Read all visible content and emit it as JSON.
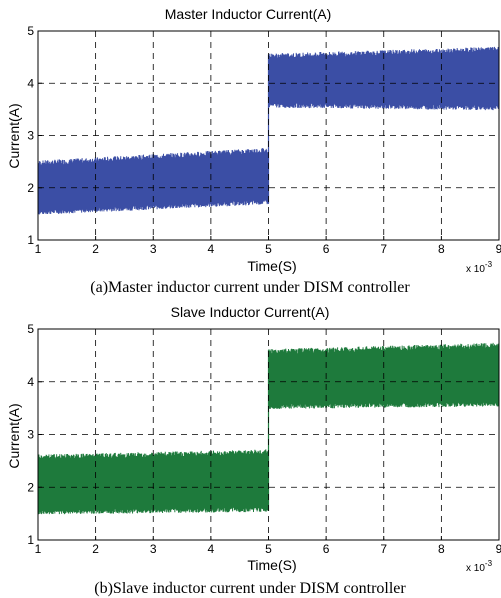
{
  "chart_data": [
    {
      "type": "line",
      "title": "Master Inductor Current(A)",
      "xlabel": "Time(S)",
      "ylabel": "Current(A)",
      "x_multiplier": "x 10",
      "x_multiplier_exp": "-3",
      "xlim": [
        1,
        9
      ],
      "ylim": [
        1,
        5
      ],
      "xticks": [
        "1",
        "2",
        "3",
        "4",
        "5",
        "6",
        "7",
        "8",
        "9"
      ],
      "yticks": [
        "1",
        "2",
        "3",
        "4",
        "5"
      ],
      "grid": true,
      "series": [
        {
          "color": "#3b4ea5",
          "segments": [
            {
              "x_start": 1,
              "x_end": 5,
              "low_start": 1.5,
              "low_end": 1.7,
              "high_start": 2.5,
              "high_end": 2.75
            },
            {
              "x_start": 5,
              "x_end": 9,
              "low_start": 3.55,
              "low_end": 3.5,
              "high_start": 4.55,
              "high_end": 4.68
            }
          ]
        }
      ],
      "caption": "(a)Master inductor current under DISM controller"
    },
    {
      "type": "line",
      "title": "Slave  Inductor  Current(A)",
      "xlabel": "Time(S)",
      "ylabel": "Current(A)",
      "x_multiplier": "x 10",
      "x_multiplier_exp": "-3",
      "xlim": [
        1,
        9
      ],
      "ylim": [
        1,
        5
      ],
      "xticks": [
        "1",
        "2",
        "3",
        "4",
        "5",
        "6",
        "7",
        "8",
        "9"
      ],
      "yticks": [
        "1",
        "2",
        "3",
        "4",
        "5"
      ],
      "grid": true,
      "series": [
        {
          "color": "#1e7a3c",
          "segments": [
            {
              "x_start": 1,
              "x_end": 5,
              "low_start": 1.5,
              "low_end": 1.55,
              "high_start": 2.6,
              "high_end": 2.7
            },
            {
              "x_start": 5,
              "x_end": 9,
              "low_start": 3.5,
              "low_end": 3.55,
              "high_start": 4.6,
              "high_end": 4.72
            }
          ]
        }
      ],
      "caption": "(b)Slave  inductor current under DISM controller"
    }
  ]
}
